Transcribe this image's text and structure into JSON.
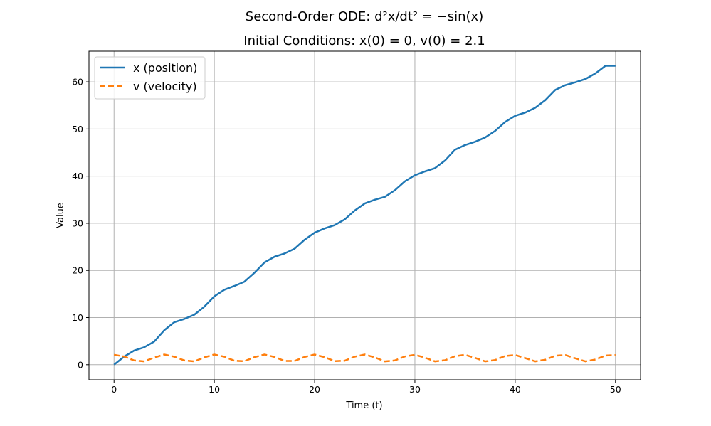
{
  "chart_data": {
    "type": "line",
    "title_lines": [
      "Second-Order ODE: d²x/dt² = −sin(x)",
      "Initial Conditions: x(0) = 0, v(0) = 2.1"
    ],
    "xlabel": "Time (t)",
    "ylabel": "Value",
    "xlim": [
      -2.5,
      52.5
    ],
    "ylim": [
      -3.2,
      66.5
    ],
    "xticks": [
      0,
      10,
      20,
      30,
      40,
      50
    ],
    "yticks": [
      0,
      10,
      20,
      30,
      40,
      50,
      60
    ],
    "grid": true,
    "legend_position": "top-left",
    "series": [
      {
        "name": "x (position)",
        "color": "#1f77b4",
        "style": "solid",
        "x": [
          0,
          1,
          2,
          3,
          4,
          5,
          6,
          7,
          8,
          9,
          10,
          11,
          12,
          13,
          14,
          15,
          16,
          17,
          18,
          19,
          20,
          21,
          22,
          23,
          24,
          25,
          26,
          27,
          28,
          29,
          30,
          31,
          32,
          33,
          34,
          35,
          36,
          37,
          38,
          39,
          40,
          41,
          42,
          43,
          44,
          45,
          46,
          47,
          48,
          49,
          50
        ],
        "values": [
          0.0,
          1.7,
          3.0,
          3.7,
          4.9,
          7.3,
          9.0,
          9.7,
          10.6,
          12.3,
          14.5,
          15.9,
          16.7,
          17.6,
          19.5,
          21.7,
          22.9,
          23.6,
          24.6,
          26.5,
          28.0,
          28.9,
          29.6,
          30.8,
          32.7,
          34.2,
          35.0,
          35.6,
          37.0,
          38.9,
          40.2,
          41.0,
          41.7,
          43.3,
          45.6,
          46.6,
          47.3,
          48.2,
          49.6,
          51.5,
          52.8,
          53.5,
          54.5,
          56.1,
          58.3,
          59.3,
          59.9,
          60.6,
          61.8,
          63.4,
          63.4
        ]
      },
      {
        "name": "v (velocity)",
        "color": "#ff7f0e",
        "style": "dashed",
        "x": [
          0,
          1,
          2,
          3,
          4,
          5,
          6,
          7,
          8,
          9,
          10,
          11,
          12,
          13,
          14,
          15,
          16,
          17,
          18,
          19,
          20,
          21,
          22,
          23,
          24,
          25,
          26,
          27,
          28,
          29,
          30,
          31,
          32,
          33,
          34,
          35,
          36,
          37,
          38,
          39,
          40,
          41,
          42,
          43,
          44,
          45,
          46,
          47,
          48,
          49,
          50
        ],
        "values": [
          2.1,
          1.75,
          0.9,
          0.7,
          1.5,
          2.15,
          1.7,
          0.9,
          0.7,
          1.55,
          2.15,
          1.7,
          0.85,
          0.75,
          1.6,
          2.15,
          1.65,
          0.8,
          0.8,
          1.65,
          2.15,
          1.6,
          0.75,
          0.85,
          1.7,
          2.15,
          1.55,
          0.7,
          0.9,
          1.75,
          2.1,
          1.5,
          0.7,
          0.95,
          1.8,
          2.1,
          1.45,
          0.7,
          1.0,
          1.85,
          2.05,
          1.4,
          0.7,
          1.05,
          1.9,
          2.05,
          1.35,
          0.7,
          1.1,
          1.95,
          2.05
        ]
      }
    ]
  }
}
